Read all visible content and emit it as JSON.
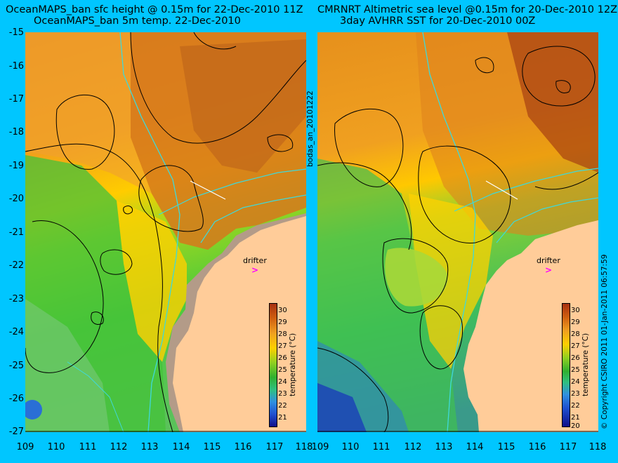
{
  "left_panel": {
    "title_line1": "OceanMAPS_ban sfc height @ 0.15m for 22-Dec-2010 11Z",
    "title_line2": "OceanMAPS_ban 5m temp. 22-Dec-2010",
    "drifter_label": "drifter",
    "drifter_marker": ">",
    "colorbar_ticks": [
      "30",
      "29",
      "28",
      "27",
      "26",
      "25",
      "24",
      "23",
      "22",
      "21"
    ],
    "colorbar_title": "temperature (°C)"
  },
  "right_panel": {
    "title_line1": "CMRNRT Altimetric sea level  @0.15m  for 20-Dec-2010 12Z",
    "title_line2": "3day AVHRR SST for 20-Dec-2010 00Z",
    "drifter_label": "drifter",
    "drifter_marker": ">",
    "colorbar_ticks": [
      "30",
      "29",
      "28",
      "27",
      "26",
      "25",
      "24",
      "23",
      "22",
      "21",
      "20"
    ],
    "colorbar_title": "temperature (°C)"
  },
  "y_axis_labels": [
    "-15",
    "-16",
    "-17",
    "-18",
    "-19",
    "-20",
    "-21",
    "-22",
    "-23",
    "-24",
    "-25",
    "-26",
    "-27"
  ],
  "x_axis_labels": [
    "109",
    "110",
    "111",
    "112",
    "113",
    "114",
    "115",
    "116",
    "117",
    "118"
  ],
  "side_text_middle": "bodas_an_20101222",
  "side_text_right": "© Copyright CSIRO 2011   01-Jan-2011 06:57:59",
  "colors": {
    "background": "#00c6ff",
    "land": "#ffcc99",
    "land_model": "#b39b88",
    "contour": "#000000",
    "isobath": "#3fd9d9",
    "drifter": "#ff00ff"
  }
}
